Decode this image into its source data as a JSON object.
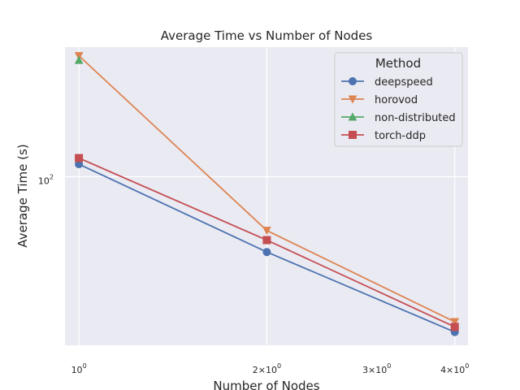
{
  "chart_data": {
    "type": "line",
    "title": "Average Time vs Number of Nodes",
    "xlabel": "Number of Nodes",
    "ylabel": "Average Time (s)",
    "x_scale": "log",
    "y_scale": "log",
    "x": [
      1,
      2,
      4
    ],
    "xlim": [
      0.95,
      4.2
    ],
    "ylim": [
      59,
      150
    ],
    "x_ticks": [
      {
        "value": 1,
        "label": "10",
        "sup": "0"
      },
      {
        "value": 2,
        "label": "2×10",
        "sup": "0"
      },
      {
        "value": 3,
        "label": "3×10",
        "sup": "0"
      },
      {
        "value": 4,
        "label": "4×10",
        "sup": "0"
      }
    ],
    "y_ticks": [
      {
        "value": 100,
        "label": "10",
        "sup": "2"
      }
    ],
    "grid": true,
    "legend": {
      "title": "Method",
      "position": "top-right"
    },
    "series": [
      {
        "name": "deepspeed",
        "color": "#4c72b0",
        "marker": "circle",
        "x": [
          1,
          2,
          4
        ],
        "values": [
          104,
          79,
          61.5
        ]
      },
      {
        "name": "horovod",
        "color": "#dd8452",
        "marker": "triangle-down",
        "x": [
          1,
          2,
          4
        ],
        "values": [
          146,
          84.5,
          63.5
        ]
      },
      {
        "name": "non-distributed",
        "color": "#55a868",
        "marker": "triangle-up",
        "x": [
          1
        ],
        "values": [
          144
        ]
      },
      {
        "name": "torch-ddp",
        "color": "#c44e52",
        "marker": "square",
        "x": [
          1,
          2,
          4
        ],
        "values": [
          106,
          82,
          62.5
        ]
      }
    ]
  }
}
